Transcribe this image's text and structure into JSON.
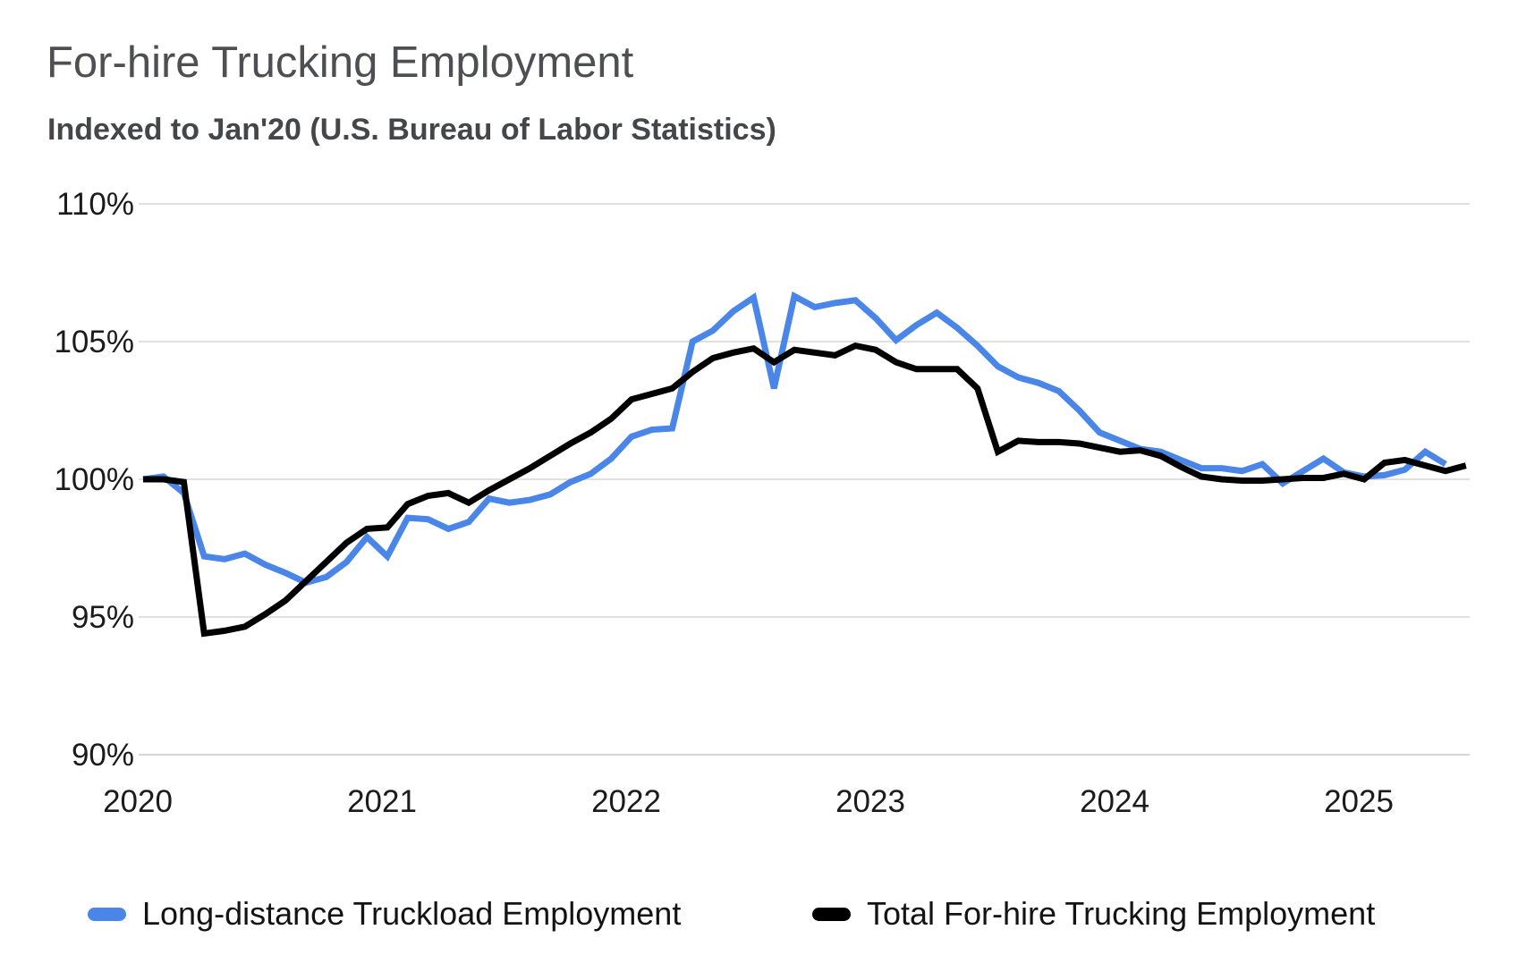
{
  "header": {
    "title": "For-hire Trucking Employment",
    "subtitle": "Indexed to Jan'20 (U.S. Bureau of Labor Statistics)"
  },
  "colors": {
    "long_distance_line": "#4a86e8",
    "total_line": "#000000",
    "gridline": "#e0e0e0",
    "baseline": "#d5d5d5",
    "axis_text": "#1b1b1b",
    "title_text": "#4e4f52",
    "subtitle_text": "#454649"
  },
  "chart_data": {
    "type": "line",
    "title": "For-hire Trucking Employment",
    "subtitle": "Indexed to Jan'20 (U.S. Bureau of Labor Statistics)",
    "x_unit": "month",
    "x_start": "Jan 2020",
    "x_tick_labels": [
      "2020",
      "2021",
      "2022",
      "2023",
      "2024",
      "2025"
    ],
    "y_tick_labels": [
      "110%",
      "105%",
      "100%",
      "95%",
      "90%"
    ],
    "y_tick_values": [
      110,
      105,
      100,
      95,
      90
    ],
    "ylim": [
      90,
      110
    ],
    "grid": true,
    "legend_position": "bottom",
    "series": [
      {
        "name": "Long-distance Truckload Employment",
        "color": "#4a86e8",
        "x_end": "May 2025",
        "values": [
          100.0,
          100.1,
          99.5,
          97.2,
          97.1,
          97.3,
          96.9,
          96.6,
          96.25,
          96.45,
          97.0,
          97.9,
          97.2,
          98.6,
          98.55,
          98.2,
          98.45,
          99.3,
          99.15,
          99.25,
          99.45,
          99.9,
          100.2,
          100.75,
          101.55,
          101.8,
          101.85,
          105.0,
          105.4,
          106.1,
          106.6,
          103.3,
          106.65,
          106.25,
          106.4,
          106.5,
          105.85,
          105.05,
          105.6,
          106.05,
          105.5,
          104.85,
          104.1,
          103.7,
          103.5,
          103.2,
          102.5,
          101.7,
          101.4,
          101.1,
          101.0,
          100.7,
          100.4,
          100.4,
          100.3,
          100.55,
          99.85,
          100.3,
          100.75,
          100.25,
          100.1,
          100.15,
          100.35,
          101.0,
          100.55
        ]
      },
      {
        "name": "Total For-hire Trucking Employment",
        "color": "#000000",
        "x_end": "Jun 2025",
        "values": [
          100.0,
          100.0,
          99.9,
          94.4,
          94.5,
          94.65,
          95.1,
          95.6,
          96.3,
          97.0,
          97.7,
          98.2,
          98.25,
          99.1,
          99.4,
          99.5,
          99.15,
          99.6,
          100.0,
          100.4,
          100.85,
          101.3,
          101.7,
          102.2,
          102.9,
          103.1,
          103.3,
          103.9,
          104.4,
          104.6,
          104.75,
          104.25,
          104.7,
          104.6,
          104.5,
          104.85,
          104.7,
          104.25,
          104.0,
          104.0,
          104.0,
          103.3,
          101.0,
          101.4,
          101.35,
          101.35,
          101.3,
          101.15,
          101.0,
          101.05,
          100.85,
          100.45,
          100.1,
          100.0,
          99.95,
          99.95,
          100.0,
          100.05,
          100.05,
          100.2,
          100.0,
          100.6,
          100.7,
          100.5,
          100.3,
          100.5
        ]
      }
    ]
  },
  "legend": {
    "items": [
      {
        "label": "Long-distance Truckload Employment",
        "color": "#4a86e8"
      },
      {
        "label": "Total For-hire Trucking Employment",
        "color": "#000000"
      }
    ]
  }
}
